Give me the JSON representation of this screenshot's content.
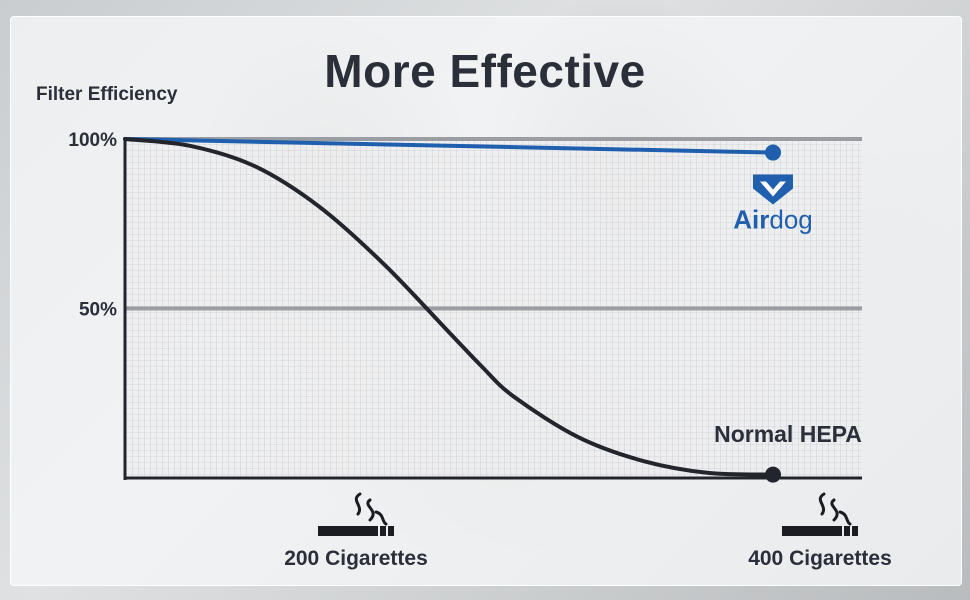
{
  "chart_data": {
    "type": "line",
    "title": "More Effective",
    "ylabel": "Filter Efficiency",
    "xlabel": "",
    "ylim": [
      0,
      100
    ],
    "xlim": [
      0,
      400
    ],
    "y_ticks": [
      {
        "value": 100,
        "label": "100%"
      },
      {
        "value": 50,
        "label": "50%"
      }
    ],
    "x_categories": [
      {
        "value": 200,
        "label": "200 Cigarettes",
        "icon": "cigarette-smoke-icon"
      },
      {
        "value": 400,
        "label": "400 Cigarettes",
        "icon": "cigarette-smoke-icon"
      }
    ],
    "grid": true,
    "series": [
      {
        "name": "Airdog",
        "color": "#1f5fae",
        "x": [
          0,
          400
        ],
        "y": [
          100,
          96
        ]
      },
      {
        "name": "Normal HEPA",
        "color": "#23252d",
        "x": [
          0,
          40,
          80,
          120,
          160,
          200,
          220,
          240,
          280,
          320,
          360,
          400
        ],
        "y": [
          100,
          98,
          92,
          80,
          63,
          43,
          33,
          24,
          12,
          5,
          1.5,
          1
        ]
      }
    ],
    "annotations": {
      "airdog_logo": {
        "brand_text_a": "Air",
        "brand_text_b": "dog",
        "icon": "airdog-logo-icon"
      },
      "hepa_label": "Normal HEPA"
    }
  }
}
